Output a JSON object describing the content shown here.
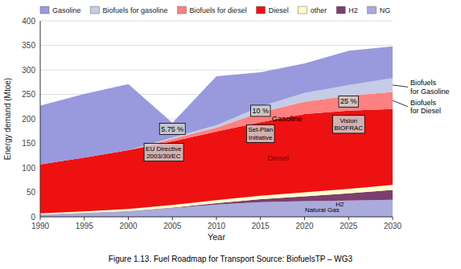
{
  "chart_data": {
    "type": "area",
    "stacked": true,
    "x_label": "Year",
    "y_label": "Energy demand (Mtoe)",
    "x": [
      1990,
      1995,
      2000,
      2005,
      2010,
      2015,
      2020,
      2025,
      2030
    ],
    "xlim": [
      1990,
      2030
    ],
    "xticks": [
      1990,
      1995,
      2000,
      2005,
      2010,
      2015,
      2020,
      2025,
      2030
    ],
    "ylim": [
      0,
      400
    ],
    "yticks": [
      0,
      50,
      100,
      150,
      200,
      250,
      300,
      350,
      400
    ],
    "grid": true,
    "legend": "top",
    "series": [
      {
        "name": "NG",
        "color": "#aaaadd",
        "values": [
          5,
          8,
          12,
          18,
          25,
          30,
          32,
          33,
          35
        ]
      },
      {
        "name": "H2",
        "color": "#7b3f6e",
        "values": [
          0,
          0,
          0,
          1,
          3,
          6,
          10,
          15,
          20
        ]
      },
      {
        "name": "other",
        "color": "#ffffcc",
        "values": [
          2,
          3,
          4,
          5,
          6,
          7,
          8,
          9,
          10
        ]
      },
      {
        "name": "Diesel",
        "color": "#ee1111",
        "values": [
          100,
          110,
          120,
          130,
          140,
          150,
          160,
          160,
          155
        ]
      },
      {
        "name": "Biofuels for diesel",
        "color": "#ff8080",
        "values": [
          0,
          0,
          0,
          5,
          8,
          20,
          25,
          30,
          35
        ]
      },
      {
        "name": "Biofuels for gasoline",
        "color": "#c4cce6",
        "values": [
          0,
          0,
          0,
          3,
          5,
          12,
          18,
          22,
          28
        ]
      },
      {
        "name": "Gasoline",
        "color": "#9999dd",
        "values": [
          120,
          130,
          135,
          30,
          100,
          70,
          60,
          70,
          65
        ]
      }
    ],
    "annotations": [
      {
        "text": "Gasoline",
        "x": 2018,
        "y": 195
      },
      {
        "text": "Diesel",
        "x": 2017,
        "y": 115,
        "color": "darkred"
      },
      {
        "text": "H2",
        "x": 2024,
        "y": 22
      },
      {
        "text": "Natural Gas",
        "x": 2022,
        "y": 10
      }
    ],
    "callouts": [
      {
        "top": {
          "text": "5.75 %",
          "x": 2005,
          "y": 168
        },
        "bottom": {
          "text": "EU Directive\n2003/30/EC",
          "x": 2004,
          "y": 150
        }
      },
      {
        "top": {
          "text": "10 %",
          "x": 2015,
          "y": 205
        },
        "bottom": {
          "text": "Set-Plan\nInitiative",
          "x": 2015,
          "y": 188
        }
      },
      {
        "top": {
          "text": "25 %",
          "x": 2025,
          "y": 224
        },
        "bottom": {
          "text": "Vision\nBIOFRAC",
          "x": 2025,
          "y": 207
        }
      }
    ],
    "side_labels": [
      {
        "text": "Biofuels\nfor Gasoline",
        "x": 2032,
        "y": 265
      },
      {
        "text": "Biofuels\nfor Diesel",
        "x": 2032,
        "y": 225
      }
    ],
    "caption": "Figure 1.13. Fuel Roadmap for Transport Source: BiofuelsTP – WG3"
  }
}
